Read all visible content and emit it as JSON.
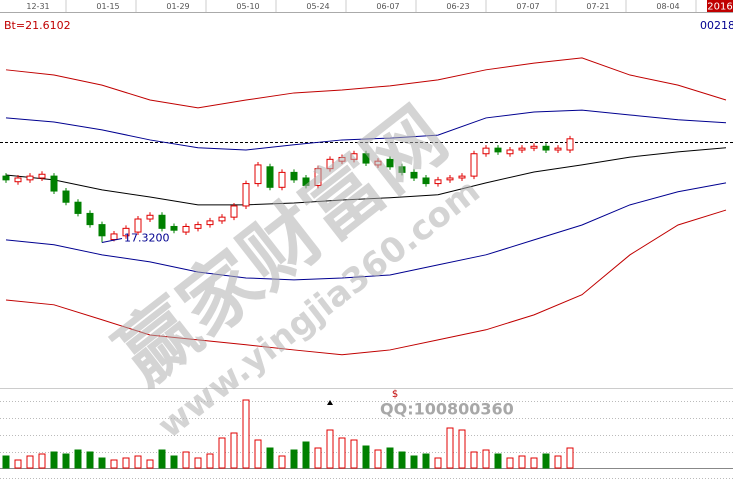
{
  "chart_data": {
    "type": "candlestick",
    "indicator_label": "Bt=21.6102",
    "code_label": "00218",
    "year_label": "2016",
    "date_labels": [
      "12-31",
      "01-15",
      "01-29",
      "05-10",
      "05-24",
      "06-07",
      "06-23",
      "07-07",
      "07-21",
      "08-04"
    ],
    "ylim": [
      13.5,
      23.5
    ],
    "up_color": "#e00000",
    "down_color": "#008000",
    "open": [
      19.1,
      18.95,
      19.0,
      19.05,
      19.1,
      18.7,
      18.4,
      18.1,
      17.8,
      17.4,
      17.5,
      17.6,
      17.95,
      18.05,
      17.75,
      17.6,
      17.7,
      17.8,
      17.9,
      18.0,
      18.3,
      18.9,
      19.35,
      18.8,
      19.2,
      19.05,
      18.85,
      19.3,
      19.5,
      19.55,
      19.7,
      19.4,
      19.55,
      19.35,
      19.2,
      19.05,
      18.9,
      19.0,
      19.05,
      19.1,
      19.7,
      19.85,
      19.7,
      19.8,
      19.85,
      19.9,
      19.8,
      19.8
    ],
    "high": [
      19.18,
      19.13,
      19.18,
      19.23,
      19.18,
      18.78,
      18.48,
      18.18,
      17.88,
      17.63,
      17.78,
      18.03,
      18.13,
      18.13,
      17.83,
      17.83,
      17.88,
      17.98,
      18.08,
      18.38,
      18.98,
      19.48,
      19.43,
      19.28,
      19.28,
      19.13,
      19.38,
      19.63,
      19.68,
      19.78,
      19.78,
      19.58,
      19.63,
      19.43,
      19.28,
      19.13,
      19.08,
      19.13,
      19.18,
      19.78,
      19.93,
      19.93,
      19.88,
      19.93,
      19.98,
      19.98,
      19.93,
      20.18
    ],
    "low": [
      18.92,
      18.87,
      18.92,
      18.97,
      18.62,
      18.32,
      18.02,
      17.72,
      17.32,
      17.35,
      17.42,
      17.52,
      17.87,
      17.62,
      17.57,
      17.52,
      17.62,
      17.72,
      17.82,
      17.92,
      18.22,
      18.82,
      18.72,
      18.72,
      18.92,
      18.77,
      18.77,
      19.22,
      19.42,
      19.47,
      19.37,
      19.32,
      19.27,
      19.12,
      18.97,
      18.82,
      18.82,
      18.92,
      18.97,
      19.02,
      19.62,
      19.67,
      19.62,
      19.72,
      19.77,
      19.72,
      19.72,
      19.72
    ],
    "close": [
      19.0,
      19.05,
      19.1,
      19.15,
      18.7,
      18.4,
      18.1,
      17.8,
      17.5,
      17.55,
      17.7,
      17.95,
      18.05,
      17.7,
      17.65,
      17.75,
      17.8,
      17.9,
      18.0,
      18.3,
      18.9,
      19.4,
      18.8,
      19.2,
      19.0,
      18.85,
      19.3,
      19.55,
      19.6,
      19.7,
      19.45,
      19.5,
      19.35,
      19.2,
      19.05,
      18.9,
      19.0,
      19.05,
      19.1,
      19.7,
      19.85,
      19.75,
      19.8,
      19.85,
      19.9,
      19.8,
      19.85,
      20.1
    ],
    "low_annotation": "17.3200",
    "dashed_level": 20.0,
    "bands": {
      "x": [
        0,
        4,
        8,
        12,
        16,
        20,
        24,
        28,
        32,
        36,
        40,
        44,
        48,
        52,
        56,
        60
      ],
      "series": [
        {
          "color": "#c00000",
          "values": [
            21.95,
            21.81,
            21.54,
            21.14,
            20.93,
            21.14,
            21.33,
            21.41,
            21.52,
            21.68,
            21.95,
            22.13,
            22.27,
            21.81,
            21.54,
            21.14
          ]
        },
        {
          "color": "#000090",
          "values": [
            20.66,
            20.55,
            20.34,
            20.07,
            19.86,
            19.8,
            19.94,
            20.07,
            20.12,
            20.2,
            20.66,
            20.82,
            20.87,
            20.74,
            20.61,
            20.53
          ]
        },
        {
          "color": "#000000",
          "values": [
            19.13,
            19.0,
            18.73,
            18.54,
            18.33,
            18.33,
            18.38,
            18.46,
            18.52,
            18.6,
            18.92,
            19.21,
            19.4,
            19.61,
            19.75,
            19.86
          ]
        },
        {
          "color": "#000090",
          "values": [
            17.39,
            17.26,
            16.99,
            16.8,
            16.53,
            16.37,
            16.32,
            16.37,
            16.45,
            16.72,
            16.99,
            17.39,
            17.79,
            18.33,
            18.68,
            18.92
          ]
        },
        {
          "color": "#c00000",
          "values": [
            15.78,
            15.65,
            15.25,
            14.84,
            14.71,
            14.58,
            14.44,
            14.31,
            14.44,
            14.71,
            14.98,
            15.38,
            15.92,
            16.99,
            17.79,
            18.19
          ]
        }
      ]
    },
    "volume": {
      "ylim": [
        0,
        70
      ],
      "values": [
        12,
        8,
        12,
        14,
        16,
        14,
        18,
        16,
        10,
        8,
        10,
        12,
        8,
        18,
        12,
        16,
        10,
        14,
        30,
        35,
        68,
        28,
        20,
        12,
        18,
        26,
        20,
        38,
        30,
        28,
        22,
        18,
        20,
        16,
        12,
        14,
        10,
        40,
        38,
        16,
        18,
        14,
        10,
        12,
        10,
        14,
        12,
        20
      ]
    },
    "volume_marker": "$",
    "watermark": {
      "title": "赢家财富网",
      "url": "www.yingjia360.com",
      "qq": "QQ:100800360"
    }
  }
}
